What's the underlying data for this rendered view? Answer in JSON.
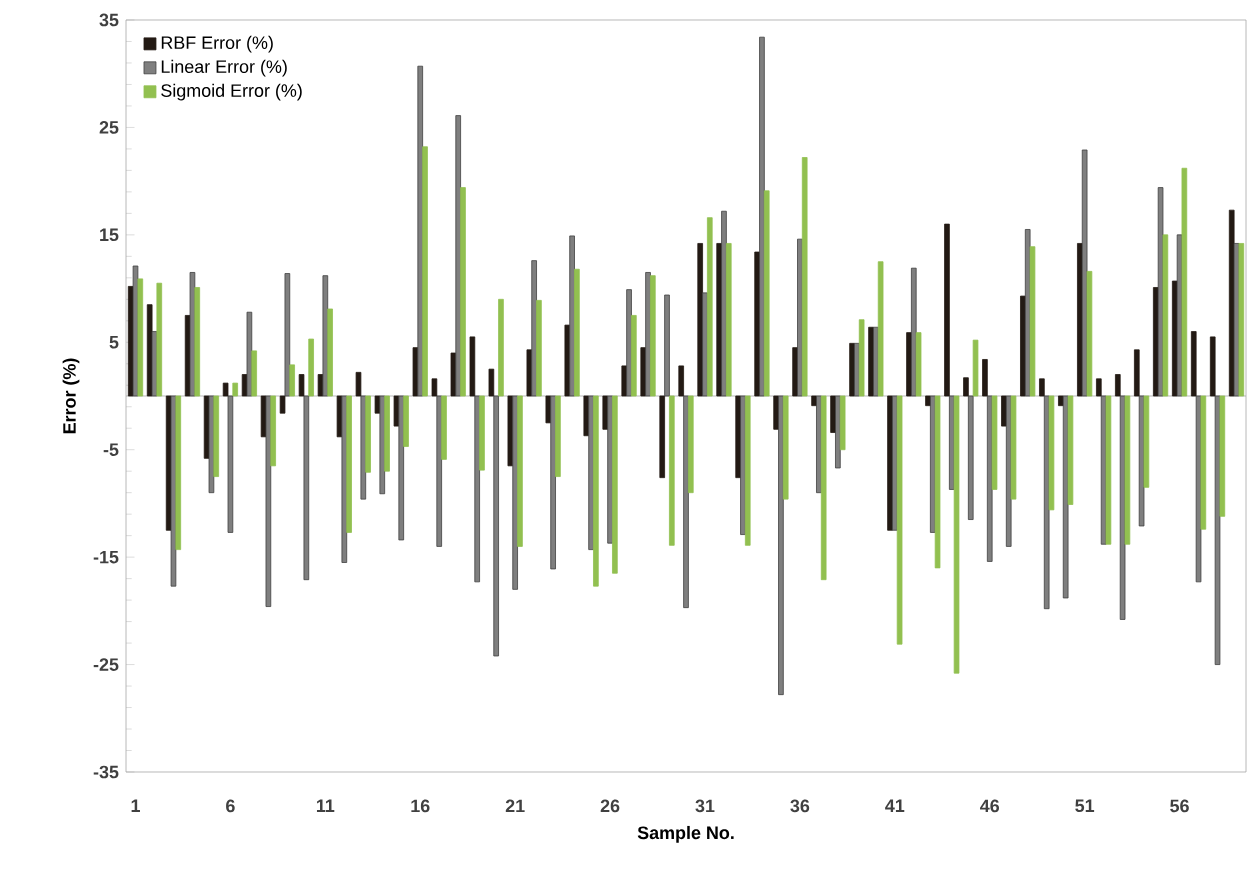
{
  "chart_data": {
    "type": "bar",
    "xlabel": "Sample No.",
    "ylabel": "Error (%)",
    "categories": [
      "1",
      null,
      null,
      null,
      null,
      "6",
      null,
      null,
      null,
      null,
      "11",
      null,
      null,
      null,
      null,
      "16",
      null,
      null,
      null,
      null,
      "21",
      null,
      null,
      null,
      null,
      "26",
      null,
      null,
      null,
      null,
      "31",
      null,
      null,
      null,
      null,
      "36",
      null,
      null,
      null,
      null,
      "41",
      null,
      null,
      null,
      null,
      "46",
      null,
      null,
      null,
      null,
      "51",
      null,
      null,
      null,
      null,
      "56",
      null,
      null,
      null
    ],
    "series": [
      {
        "name": "RBF Error (%)",
        "color": "#231a14",
        "values": [
          10.2,
          8.5,
          -12.5,
          7.5,
          -5.8,
          1.2,
          2,
          -3.8,
          -1.6,
          2,
          2,
          -3.8,
          2.2,
          -1.6,
          -2.8,
          4.5,
          1.6,
          4,
          5.5,
          2.5,
          -6.5,
          4.3,
          -2.5,
          6.6,
          -3.7,
          -3.1,
          2.8,
          4.5,
          -7.6,
          2.8,
          14.2,
          14.2,
          -7.6,
          13.4,
          -3.1,
          4.5,
          -0.9,
          -3.4,
          4.9,
          6.4,
          -12.5,
          5.9,
          -0.9,
          16,
          1.7,
          3.4,
          -2.8,
          9.3,
          1.6,
          -0.9,
          14.2,
          1.6,
          2,
          4.3,
          10.1,
          10.7,
          6,
          5.5,
          17.3
        ]
      },
      {
        "name": "Linear Error (%)",
        "color": "#7f7f7f",
        "values": [
          12.1,
          6,
          -17.7,
          11.5,
          -9,
          -12.7,
          7.8,
          -19.6,
          11.4,
          -17.1,
          11.2,
          -15.5,
          -9.6,
          -9.1,
          -13.4,
          30.7,
          -14,
          26.1,
          -17.3,
          -24.2,
          -18,
          12.6,
          -16.1,
          14.9,
          -14.3,
          -13.7,
          9.9,
          11.5,
          9.4,
          -19.7,
          9.6,
          17.2,
          -12.9,
          33.4,
          -27.8,
          14.6,
          -9,
          -6.7,
          4.9,
          6.4,
          -12.5,
          11.9,
          -12.7,
          -8.7,
          -11.5,
          -15.4,
          -14,
          15.5,
          -19.8,
          -18.8,
          22.9,
          -13.8,
          -20.8,
          -12.1,
          19.4,
          15,
          -17.3,
          -25,
          14.2
        ]
      },
      {
        "name": "Sigmoid  Error (%)",
        "color": "#92c050",
        "values": [
          10.9,
          10.5,
          -14.3,
          10.1,
          -7.5,
          1.2,
          4.2,
          -6.5,
          2.9,
          5.3,
          8.1,
          -12.7,
          -7.1,
          -7,
          -4.7,
          23.2,
          -5.9,
          19.4,
          -6.9,
          9,
          -14,
          8.9,
          -7.5,
          11.8,
          -17.7,
          -16.5,
          7.5,
          11.2,
          -13.9,
          -9,
          16.6,
          14.2,
          -13.9,
          19.1,
          -9.6,
          22.2,
          -17.1,
          -5,
          7.1,
          12.5,
          -23.1,
          5.9,
          -16,
          -25.8,
          5.2,
          -8.7,
          -9.6,
          13.9,
          -10.6,
          -10.1,
          11.6,
          -13.8,
          -13.8,
          -8.5,
          15,
          21.2,
          -12.4,
          -11.2,
          14.2
        ]
      }
    ],
    "ylim": [
      -35,
      35
    ],
    "yticks": [
      -35,
      -25,
      -15,
      -5,
      5,
      15,
      25,
      35
    ],
    "grid": false,
    "legend": "top left"
  }
}
